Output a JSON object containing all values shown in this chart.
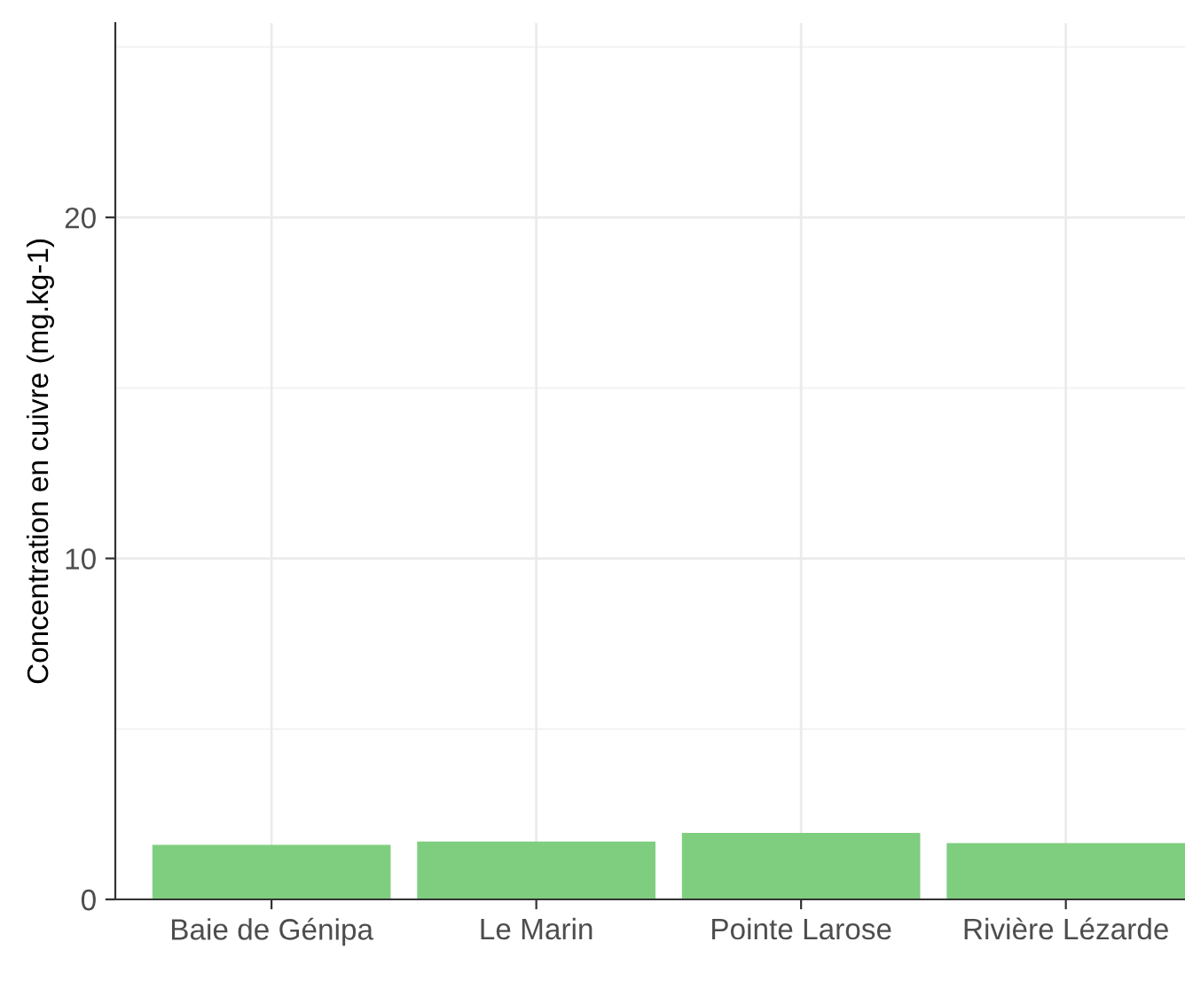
{
  "chart_data": {
    "type": "bar",
    "ylabel": "Concentration en cuivre (mg.kg-1)",
    "categories": [
      "Baie de Génipa",
      "Le Marin",
      "Pointe Larose",
      "Rivière Lézarde"
    ],
    "values": [
      1.6,
      1.7,
      1.95,
      1.65
    ],
    "color": "#7fce7f",
    "ylim": [
      0,
      25.7
    ],
    "yticks": [
      0,
      10,
      20
    ],
    "grid": true,
    "legend": false
  }
}
